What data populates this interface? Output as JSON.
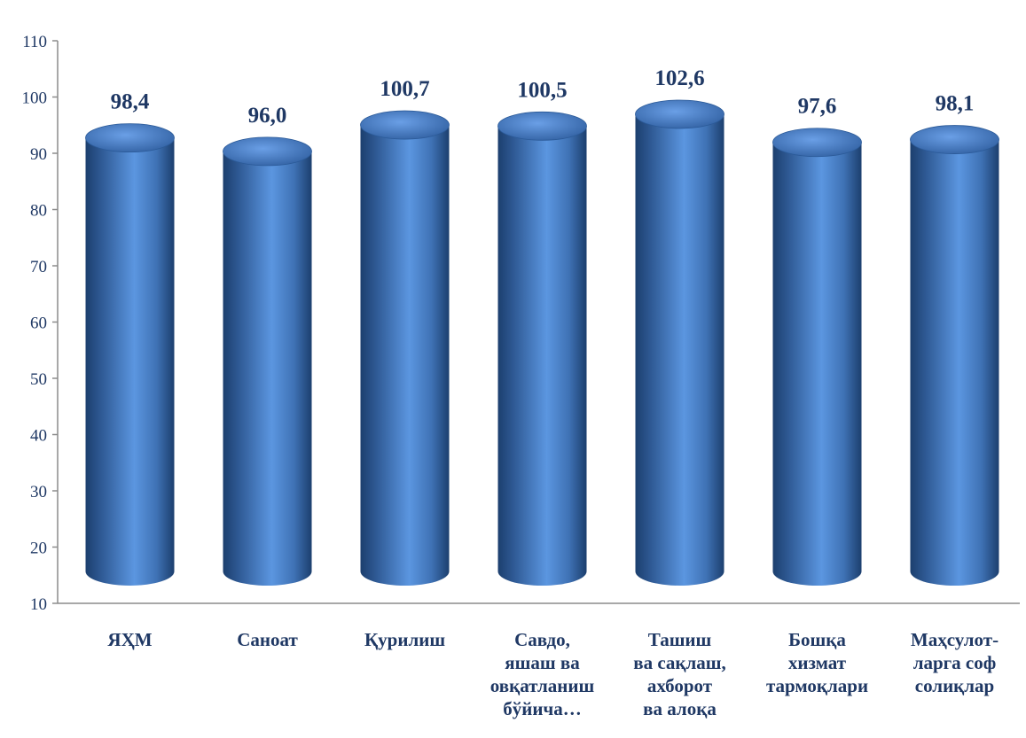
{
  "chart_data": {
    "type": "bar",
    "title": "",
    "xlabel": "",
    "ylabel": "",
    "categories": [
      [
        "ЯҲМ"
      ],
      [
        "Саноат"
      ],
      [
        "Қурилиш"
      ],
      [
        "Савдо,",
        "яшаш ва",
        "овқатланиш",
        "бўйича…"
      ],
      [
        "Ташиш",
        "ва сақлаш,",
        "ахборот",
        "ва алоқа"
      ],
      [
        "Бошқа",
        "хизмат",
        "тармоқлари"
      ],
      [
        "Маҳсулот-",
        "ларга соф",
        "солиқлар"
      ]
    ],
    "values": [
      98.4,
      96.0,
      100.7,
      100.5,
      102.6,
      97.6,
      98.1
    ],
    "value_labels": [
      "98,4",
      "96,0",
      "100,7",
      "100,5",
      "102,6",
      "97,6",
      "98,1"
    ],
    "ylim": [
      10,
      110
    ],
    "yticks": [
      "10",
      "20",
      "30",
      "40",
      "50",
      "60",
      "70",
      "80",
      "90",
      "100",
      "110"
    ],
    "grid": false,
    "legend": "none",
    "bar_style": "3d-cylinder",
    "colors": {
      "bar_dark": "#1c3f6e",
      "bar_mid": "#3f72b5",
      "bar_light": "#5b96e0",
      "bar_top": "#3d6db0",
      "bar_top_light": "#6a9fe6",
      "axis": "#8c8c8c",
      "text": "#1f3864"
    }
  }
}
